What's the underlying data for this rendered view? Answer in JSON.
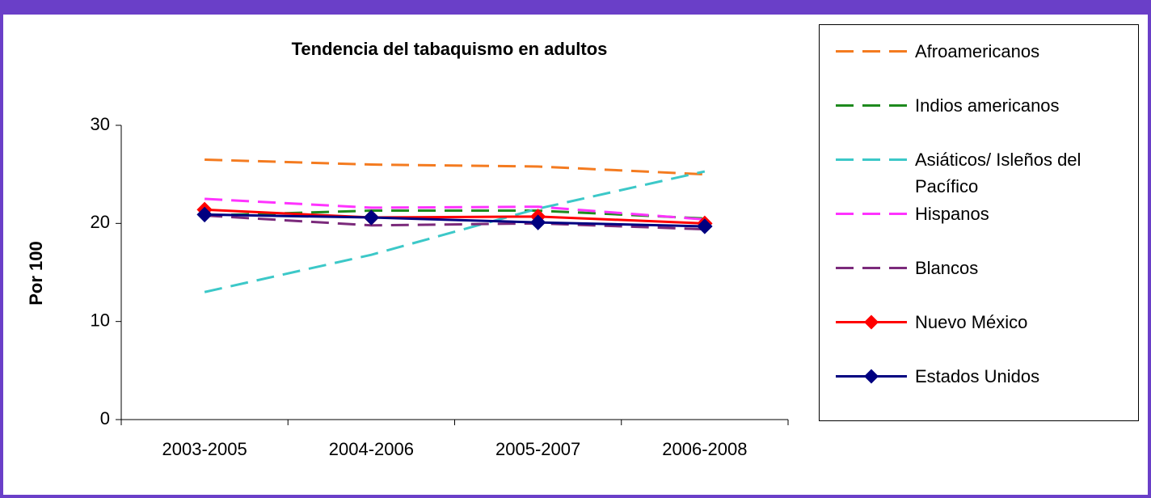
{
  "chart_data": {
    "type": "line",
    "title": "Tendencia del tabaquismo en adultos",
    "y_label": "Por 100",
    "categories": [
      "2003-2005",
      "2004-2006",
      "2005-2007",
      "2006-2008"
    ],
    "ylim": [
      0,
      30
    ],
    "yticks": [
      0,
      10,
      20,
      30
    ],
    "series": [
      {
        "name": "Afroamericanos",
        "color": "#f47b20",
        "dashed": true,
        "values": [
          26.5,
          26.0,
          25.8,
          25.0
        ]
      },
      {
        "name": "Indios americanos",
        "color": "#1e8a1e",
        "dashed": true,
        "values": [
          20.8,
          21.3,
          21.3,
          20.5
        ]
      },
      {
        "name": "Asiáticos/ Isleños del Pacífico",
        "color": "#3cc8c8",
        "dashed": true,
        "values": [
          13.0,
          16.8,
          21.5,
          25.3
        ]
      },
      {
        "name": "Hispanos",
        "color": "#ff33ff",
        "dashed": true,
        "values": [
          22.5,
          21.6,
          21.7,
          20.4
        ]
      },
      {
        "name": "Blancos",
        "color": "#7b2a7b",
        "dashed": true,
        "values": [
          20.8,
          19.8,
          20.0,
          19.4
        ]
      },
      {
        "name": "Nuevo México",
        "color": "#ff0000",
        "dashed": false,
        "marker": "diamond",
        "values": [
          21.4,
          20.6,
          20.7,
          20.0
        ]
      },
      {
        "name": "Estados Unidos",
        "color": "#000080",
        "dashed": false,
        "marker": "diamond",
        "values": [
          20.9,
          20.6,
          20.1,
          19.7
        ]
      }
    ]
  }
}
